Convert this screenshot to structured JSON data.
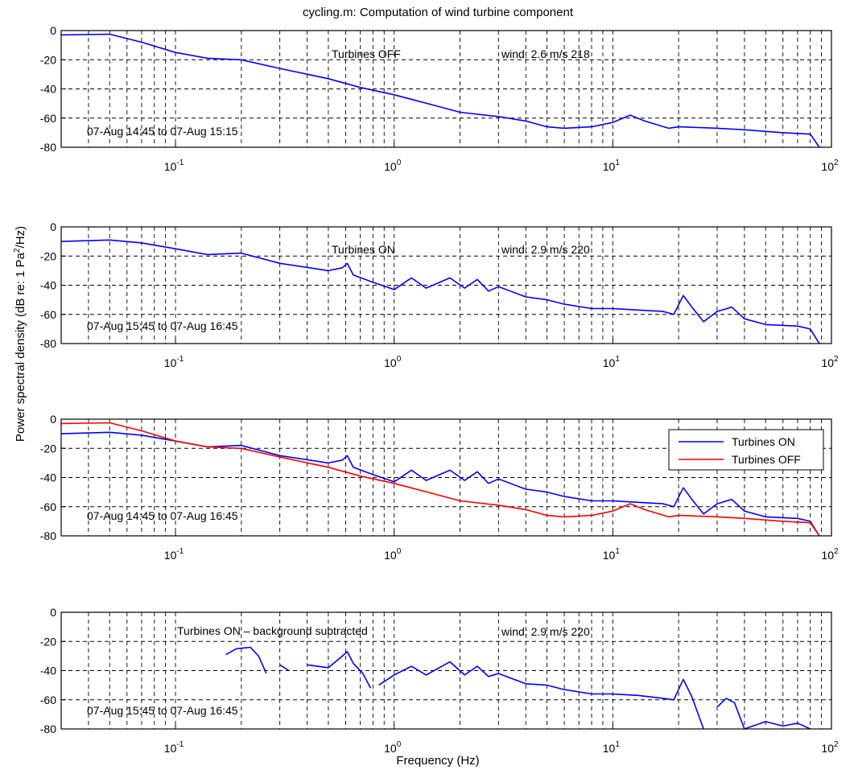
{
  "figure": {
    "title": "cycling.m: Computation of wind turbine component",
    "ylabel": "Power spectral density (dB re: 1 Pa",
    "ylabel_sup": "2",
    "ylabel_tail": "/Hz)",
    "xlabel": "Frequency (Hz)"
  },
  "colors": {
    "on": "#0000ff",
    "off": "#ff0000",
    "axis": "#000000",
    "grid": "#000000"
  },
  "chart_data": [
    {
      "type": "line",
      "xscale": "log",
      "xlim": [
        0.03,
        100
      ],
      "ylim": [
        -80,
        0
      ],
      "xticks": [
        0.1,
        1,
        10,
        100
      ],
      "yticks": [
        0,
        -20,
        -40,
        -60,
        -80
      ],
      "grid": true,
      "annotations": [
        "Turbines OFF",
        "wind: 2.6 m/s 218",
        "07-Aug 14:45  to  07-Aug 15:15"
      ],
      "series": [
        {
          "color": "blue",
          "points": [
            [
              0.03,
              -3
            ],
            [
              0.05,
              -2.5
            ],
            [
              0.07,
              -8
            ],
            [
              0.1,
              -15
            ],
            [
              0.14,
              -19
            ],
            [
              0.2,
              -20
            ],
            [
              0.3,
              -26
            ],
            [
              0.5,
              -33
            ],
            [
              0.7,
              -39
            ],
            [
              1,
              -44
            ],
            [
              1.5,
              -51
            ],
            [
              2,
              -56
            ],
            [
              3,
              -59
            ],
            [
              4,
              -62
            ],
            [
              5,
              -66
            ],
            [
              6,
              -67
            ],
            [
              8,
              -66
            ],
            [
              10,
              -63
            ],
            [
              12,
              -58
            ],
            [
              14,
              -62
            ],
            [
              18,
              -67
            ],
            [
              20,
              -66
            ],
            [
              30,
              -67
            ],
            [
              40,
              -68
            ],
            [
              60,
              -70
            ],
            [
              80,
              -71
            ],
            [
              88,
              -80
            ]
          ]
        }
      ]
    },
    {
      "type": "line",
      "xscale": "log",
      "xlim": [
        0.03,
        100
      ],
      "ylim": [
        -80,
        0
      ],
      "xticks": [
        0.1,
        1,
        10,
        100
      ],
      "yticks": [
        0,
        -20,
        -40,
        -60,
        -80
      ],
      "grid": true,
      "annotations": [
        "Turbines ON",
        "wind: 2.9 m/s 220",
        "07-Aug 15:45  to  07-Aug 16:45"
      ],
      "series": [
        {
          "color": "blue",
          "points": [
            [
              0.03,
              -10
            ],
            [
              0.05,
              -9
            ],
            [
              0.07,
              -11
            ],
            [
              0.1,
              -15
            ],
            [
              0.14,
              -19
            ],
            [
              0.2,
              -18
            ],
            [
              0.3,
              -25
            ],
            [
              0.5,
              -30
            ],
            [
              0.58,
              -28
            ],
            [
              0.61,
              -25
            ],
            [
              0.65,
              -33
            ],
            [
              0.8,
              -38
            ],
            [
              1,
              -43
            ],
            [
              1.2,
              -35
            ],
            [
              1.4,
              -42
            ],
            [
              1.8,
              -35
            ],
            [
              2.1,
              -42
            ],
            [
              2.4,
              -36
            ],
            [
              2.7,
              -44
            ],
            [
              3,
              -41
            ],
            [
              4,
              -48
            ],
            [
              5,
              -50
            ],
            [
              6,
              -53
            ],
            [
              8,
              -56
            ],
            [
              10,
              -56
            ],
            [
              13,
              -57
            ],
            [
              17,
              -58
            ],
            [
              19,
              -60
            ],
            [
              21,
              -47
            ],
            [
              23,
              -55
            ],
            [
              26,
              -65
            ],
            [
              30,
              -58
            ],
            [
              35,
              -55
            ],
            [
              40,
              -63
            ],
            [
              50,
              -67
            ],
            [
              70,
              -68
            ],
            [
              80,
              -70
            ],
            [
              88,
              -80
            ]
          ]
        }
      ]
    },
    {
      "type": "line",
      "xscale": "log",
      "xlim": [
        0.03,
        100
      ],
      "ylim": [
        -80,
        0
      ],
      "xticks": [
        0.1,
        1,
        10,
        100
      ],
      "yticks": [
        0,
        -20,
        -40,
        -60,
        -80
      ],
      "grid": true,
      "legend": "top-right",
      "annotations": [
        "07-Aug 14:45  to  07-Aug 16:45"
      ],
      "series": [
        {
          "name": "Turbines ON",
          "color": "blue",
          "points": [
            [
              0.03,
              -10
            ],
            [
              0.05,
              -9
            ],
            [
              0.07,
              -11
            ],
            [
              0.1,
              -15
            ],
            [
              0.14,
              -19
            ],
            [
              0.2,
              -18
            ],
            [
              0.3,
              -25
            ],
            [
              0.5,
              -30
            ],
            [
              0.58,
              -28
            ],
            [
              0.61,
              -25
            ],
            [
              0.65,
              -33
            ],
            [
              0.8,
              -38
            ],
            [
              1,
              -43
            ],
            [
              1.2,
              -35
            ],
            [
              1.4,
              -42
            ],
            [
              1.8,
              -35
            ],
            [
              2.1,
              -42
            ],
            [
              2.4,
              -36
            ],
            [
              2.7,
              -44
            ],
            [
              3,
              -41
            ],
            [
              4,
              -48
            ],
            [
              5,
              -50
            ],
            [
              6,
              -53
            ],
            [
              8,
              -56
            ],
            [
              10,
              -56
            ],
            [
              13,
              -57
            ],
            [
              17,
              -58
            ],
            [
              19,
              -60
            ],
            [
              21,
              -47
            ],
            [
              23,
              -55
            ],
            [
              26,
              -65
            ],
            [
              30,
              -58
            ],
            [
              35,
              -55
            ],
            [
              40,
              -63
            ],
            [
              50,
              -67
            ],
            [
              70,
              -68
            ],
            [
              80,
              -70
            ],
            [
              88,
              -80
            ]
          ]
        },
        {
          "name": "Turbines OFF",
          "color": "red",
          "points": [
            [
              0.03,
              -3
            ],
            [
              0.05,
              -2.5
            ],
            [
              0.07,
              -8
            ],
            [
              0.1,
              -15
            ],
            [
              0.14,
              -19
            ],
            [
              0.2,
              -20
            ],
            [
              0.3,
              -26
            ],
            [
              0.5,
              -33
            ],
            [
              0.7,
              -39
            ],
            [
              1,
              -44
            ],
            [
              1.5,
              -51
            ],
            [
              2,
              -56
            ],
            [
              3,
              -59
            ],
            [
              4,
              -62
            ],
            [
              5,
              -66
            ],
            [
              6,
              -67
            ],
            [
              8,
              -66
            ],
            [
              10,
              -63
            ],
            [
              12,
              -58
            ],
            [
              14,
              -62
            ],
            [
              18,
              -67
            ],
            [
              20,
              -66
            ],
            [
              30,
              -67
            ],
            [
              40,
              -68
            ],
            [
              60,
              -70
            ],
            [
              80,
              -71
            ],
            [
              88,
              -80
            ]
          ]
        }
      ]
    },
    {
      "type": "line",
      "xscale": "log",
      "xlim": [
        0.03,
        100
      ],
      "ylim": [
        -80,
        0
      ],
      "xticks": [
        0.1,
        1,
        10,
        100
      ],
      "yticks": [
        0,
        -20,
        -40,
        -60,
        -80
      ],
      "grid": true,
      "annotations": [
        "Turbines ON – background subtracted",
        "wind: 2.9 m/s 220",
        "07-Aug 15:45  to  07-Aug 16:45"
      ],
      "series": [
        {
          "color": "blue",
          "segments": [
            [
              [
                0.17,
                -29
              ],
              [
                0.19,
                -25
              ],
              [
                0.22,
                -24
              ],
              [
                0.24,
                -30
              ],
              [
                0.26,
                -42
              ]
            ],
            [
              [
                0.3,
                -36
              ],
              [
                0.33,
                -40
              ]
            ],
            [
              [
                0.4,
                -36
              ],
              [
                0.5,
                -38
              ],
              [
                0.58,
                -30
              ],
              [
                0.61,
                -27
              ],
              [
                0.65,
                -35
              ],
              [
                0.72,
                -42
              ],
              [
                0.78,
                -52
              ]
            ],
            [
              [
                0.85,
                -50
              ],
              [
                1,
                -43
              ],
              [
                1.2,
                -37
              ],
              [
                1.4,
                -43
              ],
              [
                1.8,
                -34
              ],
              [
                2.1,
                -43
              ],
              [
                2.4,
                -37
              ],
              [
                2.7,
                -44
              ],
              [
                3,
                -42
              ],
              [
                4,
                -49
              ],
              [
                5,
                -50
              ],
              [
                6,
                -53
              ],
              [
                8,
                -56
              ],
              [
                10,
                -56
              ],
              [
                13,
                -57
              ],
              [
                17,
                -59
              ],
              [
                19,
                -60
              ],
              [
                21,
                -46
              ],
              [
                23,
                -58
              ],
              [
                26,
                -80
              ]
            ],
            [
              [
                30,
                -65
              ],
              [
                33,
                -59
              ],
              [
                36,
                -62
              ],
              [
                40,
                -80
              ],
              [
                50,
                -75
              ],
              [
                60,
                -78
              ],
              [
                70,
                -76
              ],
              [
                80,
                -80
              ]
            ]
          ]
        }
      ]
    }
  ]
}
